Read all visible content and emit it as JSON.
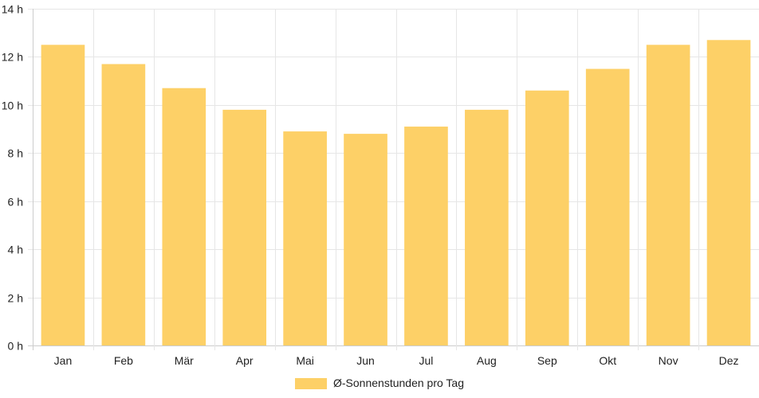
{
  "chart_data": {
    "type": "bar",
    "categories": [
      "Jan",
      "Feb",
      "Mär",
      "Apr",
      "Mai",
      "Jun",
      "Jul",
      "Aug",
      "Sep",
      "Okt",
      "Nov",
      "Dez"
    ],
    "series": [
      {
        "name": "Ø-Sonnenstunden pro Tag",
        "values": [
          12.5,
          11.7,
          10.7,
          9.8,
          8.9,
          8.8,
          9.1,
          9.8,
          10.6,
          11.5,
          12.5,
          12.7
        ],
        "color": "#fdd067"
      }
    ],
    "yticks": [
      "0 h",
      "2 h",
      "4 h",
      "6 h",
      "8 h",
      "10 h",
      "12 h",
      "14 h"
    ],
    "ylim": [
      0,
      14
    ],
    "grid": true,
    "legend_position": "bottom"
  }
}
